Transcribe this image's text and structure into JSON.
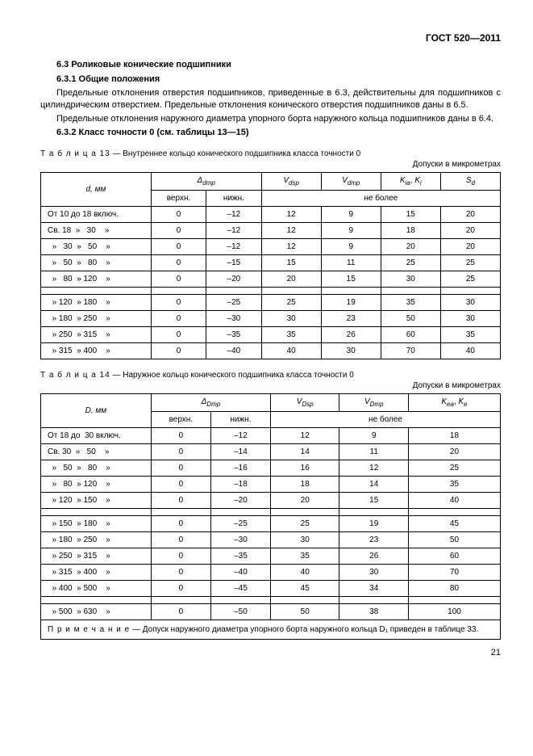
{
  "header": "ГОСТ 520—2011",
  "h63": "6.3  Роликовые конические подшипники",
  "h631": "6.3.1  Общие положения",
  "p1": "Предельные отклонения отверстия подшипников, приведенные в 6.3, действительны для подшипников с цилиндрическим отверстием. Предельные отклонения конического отверстия подшипников даны в 6.5.",
  "p2": "Предельные отклонения наружного диаметра упорного борта наружного кольца подшипников даны в 6.4.",
  "h632": "6.3.2  Класс точности 0 (см. таблицы 13—15)",
  "t13": {
    "caption_prefix": "Т а б л и ц а  13",
    "caption_rest": " — Внутреннее кольцо конического подшипника класса точности 0",
    "units": "Допуски в микрометрах",
    "col_d": "d, мм",
    "col_delta": "Δ",
    "col_delta_sub": "dmp",
    "col_vdsp": "V",
    "col_vdsp_sub": "dsp",
    "col_vdmp": "V",
    "col_vdmp_sub": "dmp",
    "col_kia": "K",
    "col_kia_sub1": "ia",
    "col_kia_sep": ", ",
    "col_kia2": "K",
    "col_kia_sub2": "i",
    "col_sd": "S",
    "col_sd_sub": "d",
    "sub_upper": "верхн.",
    "sub_lower": "нижн.",
    "sub_max": "не более",
    "rows": [
      {
        "label": "От 10 до 18 включ.",
        "u": "0",
        "l": "–12",
        "vdsp": "12",
        "vdmp": "9",
        "kia": "15",
        "sd": "20"
      },
      {
        "label": "Св. 18  »   30    »",
        "u": "0",
        "l": "–12",
        "vdsp": "12",
        "vdmp": "9",
        "kia": "18",
        "sd": "20"
      },
      {
        "label": "  »   30  »   50    »",
        "u": "0",
        "l": "–12",
        "vdsp": "12",
        "vdmp": "9",
        "kia": "20",
        "sd": "20"
      },
      {
        "label": "  »   50  »   80    »",
        "u": "0",
        "l": "–15",
        "vdsp": "15",
        "vdmp": "11",
        "kia": "25",
        "sd": "25"
      },
      {
        "label": "  »   80  » 120    »",
        "u": "0",
        "l": "–20",
        "vdsp": "20",
        "vdmp": "15",
        "kia": "30",
        "sd": "25"
      }
    ],
    "rows2": [
      {
        "label": "  » 120  » 180    »",
        "u": "0",
        "l": "–25",
        "vdsp": "25",
        "vdmp": "19",
        "kia": "35",
        "sd": "30"
      },
      {
        "label": "  » 180  » 250    »",
        "u": "0",
        "l": "–30",
        "vdsp": "30",
        "vdmp": "23",
        "kia": "50",
        "sd": "30"
      },
      {
        "label": "  » 250  » 315    »",
        "u": "0",
        "l": "–35",
        "vdsp": "35",
        "vdmp": "26",
        "kia": "60",
        "sd": "35"
      },
      {
        "label": "  » 315  » 400    »",
        "u": "0",
        "l": "–40",
        "vdsp": "40",
        "vdmp": "30",
        "kia": "70",
        "sd": "40"
      }
    ]
  },
  "t14": {
    "caption_prefix": "Т а б л и ц а  14",
    "caption_rest": " — Наружное кольцо конического подшипника класса точности 0",
    "units": "Допуски в микрометрах",
    "col_d": "D, мм",
    "col_delta": "Δ",
    "col_delta_sub": "Dmp",
    "col_vdsp": "V",
    "col_vdsp_sub": "Dsp",
    "col_vdmp": "V",
    "col_vdmp_sub": "Dmp",
    "col_kea": "K",
    "col_kea_sub1": "ea",
    "col_kea_sep": ", ",
    "col_kea2": "K",
    "col_kea_sub2": "e",
    "sub_upper": "верхн.",
    "sub_lower": "нижн.",
    "sub_max": "не более",
    "rows": [
      {
        "label": "От 18 до  30 включ.",
        "u": "0",
        "l": "–12",
        "vdsp": "12",
        "vdmp": "9",
        "kea": "18"
      },
      {
        "label": "Св. 30  »   50    »",
        "u": "0",
        "l": "–14",
        "vdsp": "14",
        "vdmp": "11",
        "kea": "20"
      },
      {
        "label": "  »   50  »   80    »",
        "u": "0",
        "l": "–16",
        "vdsp": "16",
        "vdmp": "12",
        "kea": "25"
      },
      {
        "label": "  »   80  » 120    »",
        "u": "0",
        "l": "–18",
        "vdsp": "18",
        "vdmp": "14",
        "kea": "35"
      },
      {
        "label": "  » 120  » 150    »",
        "u": "0",
        "l": "–20",
        "vdsp": "20",
        "vdmp": "15",
        "kea": "40"
      }
    ],
    "rows2": [
      {
        "label": "  » 150  » 180    »",
        "u": "0",
        "l": "–25",
        "vdsp": "25",
        "vdmp": "19",
        "kea": "45"
      },
      {
        "label": "  » 180  » 250    »",
        "u": "0",
        "l": "–30",
        "vdsp": "30",
        "vdmp": "23",
        "kea": "50"
      },
      {
        "label": "  » 250  » 315    »",
        "u": "0",
        "l": "–35",
        "vdsp": "35",
        "vdmp": "26",
        "kea": "60"
      },
      {
        "label": "  » 315  » 400    »",
        "u": "0",
        "l": "–40",
        "vdsp": "40",
        "vdmp": "30",
        "kea": "70"
      },
      {
        "label": "  » 400  » 500    »",
        "u": "0",
        "l": "–45",
        "vdsp": "45",
        "vdmp": "34",
        "kea": "80"
      }
    ],
    "rows3": [
      {
        "label": "  » 500  » 630    »",
        "u": "0",
        "l": "–50",
        "vdsp": "50",
        "vdmp": "38",
        "kea": "100"
      }
    ],
    "note_label": "П р и м е ч а н и е",
    "note_rest": " — Допуск наружного диаметра упорного борта наружного кольца D₁ приведен в таблице 33."
  },
  "page": "21"
}
